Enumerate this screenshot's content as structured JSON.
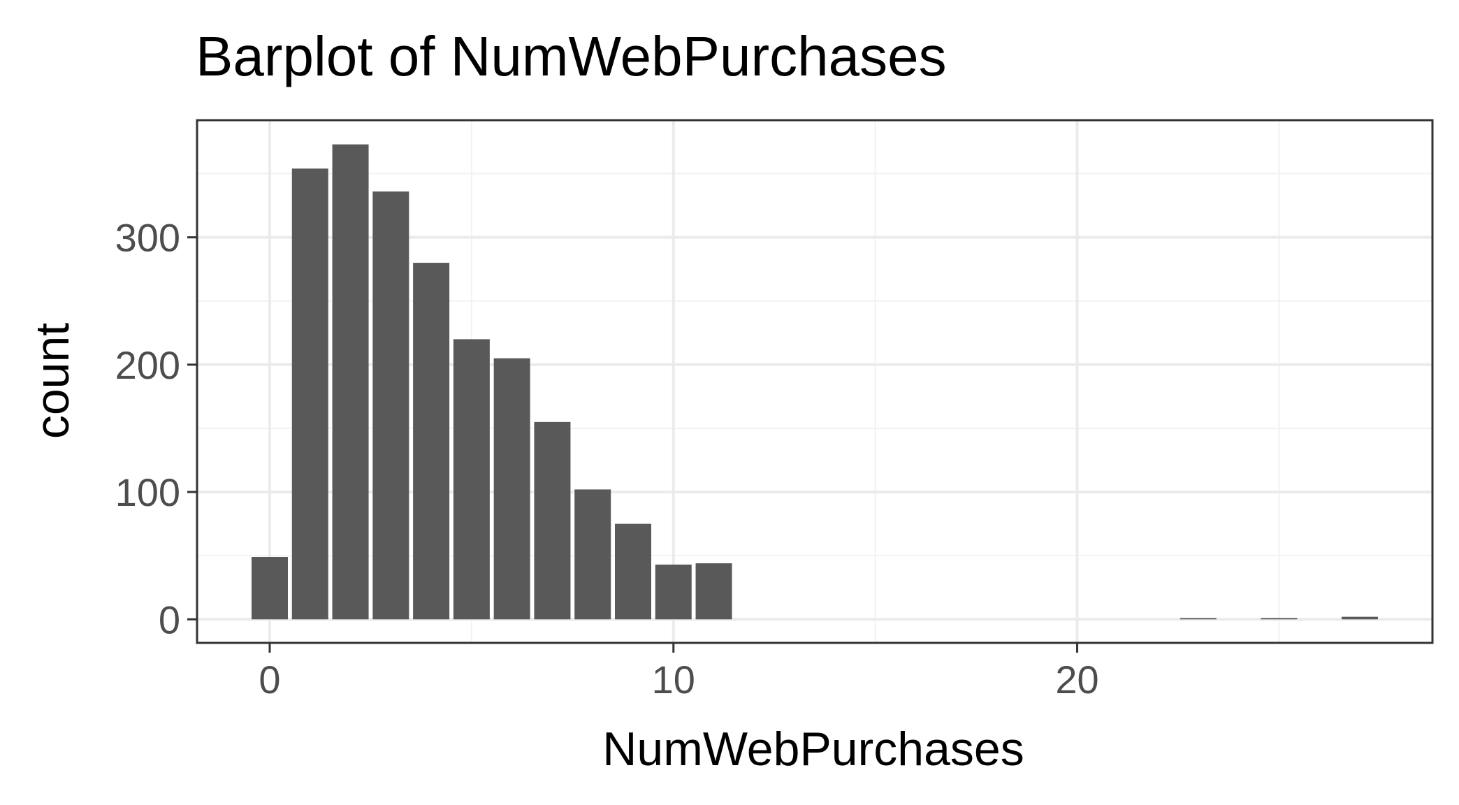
{
  "chart_data": {
    "type": "bar",
    "title": "Barplot of NumWebPurchases",
    "xlabel": "NumWebPurchases",
    "ylabel": "count",
    "x": [
      0,
      1,
      2,
      3,
      4,
      5,
      6,
      7,
      8,
      9,
      10,
      11,
      23,
      25,
      27
    ],
    "values": [
      49,
      354,
      373,
      336,
      280,
      220,
      205,
      155,
      102,
      75,
      43,
      44,
      1,
      1,
      2
    ],
    "xlim": [
      -1.8,
      28.8
    ],
    "ylim": [
      -18.5,
      392
    ],
    "xticks": [
      0,
      10,
      20
    ],
    "xtick_labels": [
      "0",
      "10",
      "20"
    ],
    "yticks": [
      0,
      100,
      200,
      300
    ],
    "ytick_labels": [
      "0",
      "100",
      "200",
      "300"
    ],
    "grid": true,
    "legend": "none",
    "colors": {
      "bar": "#595959",
      "panel_border": "#333333",
      "grid_major": "#ebebeb",
      "grid_minor": "#f2f2f2",
      "tick_text": "#4d4d4d",
      "text": "#000000"
    }
  }
}
